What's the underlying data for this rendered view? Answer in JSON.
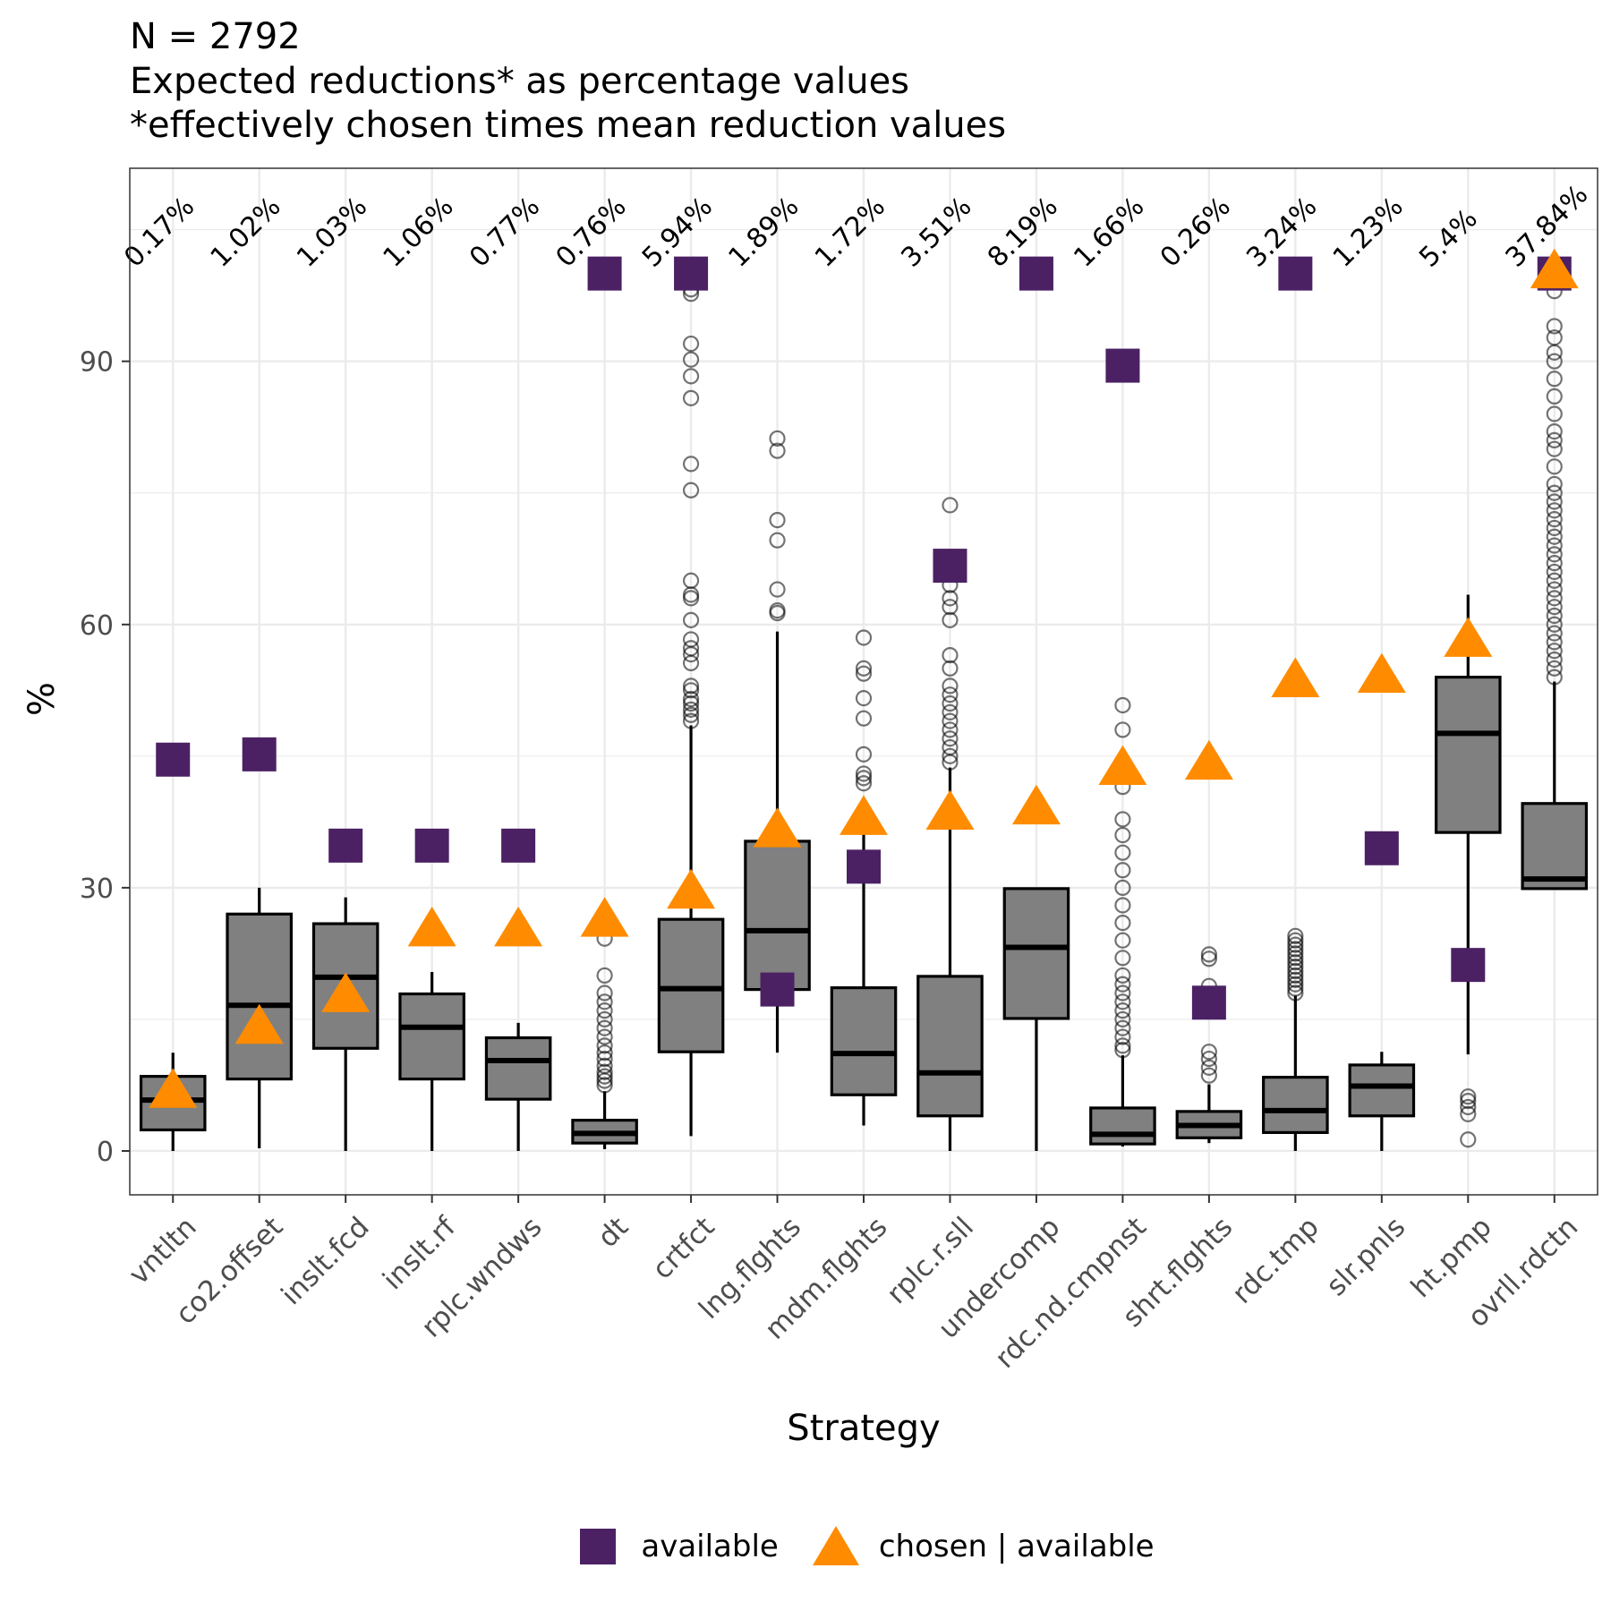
{
  "titles": {
    "line1": "N = 2792",
    "line2": "Expected reductions* as percentage values",
    "line3": "*effectively chosen times mean reduction values"
  },
  "axes": {
    "xlabel": "Strategy",
    "ylabel": "%"
  },
  "legend": {
    "available": "available",
    "chosen": "chosen | available"
  },
  "colors": {
    "available": "#4B2164",
    "chosen": "#FF8C00",
    "box_fill": "#808080",
    "grid": "#EBEBEB"
  },
  "chart_data": {
    "type": "box",
    "title": "N = 2792 / Expected reductions* as percentage values / *effectively chosen times mean reduction values",
    "xlabel": "Strategy",
    "ylabel": "%",
    "ylim": [
      -5,
      112
    ],
    "yticks": [
      0,
      30,
      60,
      90
    ],
    "categories": [
      "vntltn",
      "co2.offset",
      "inslt.fcd",
      "inslt.rf",
      "rplc.wndws",
      "dt",
      "crtfct",
      "lng.flghts",
      "mdm.flghts",
      "rplc.r.sll",
      "undercomp",
      "rdc.nd.cmpnst",
      "shrt.flghts",
      "rdc.tmp",
      "slr.pnls",
      "ht.pmp",
      "ovrll.rdctn"
    ],
    "expected_labels": [
      "0.17%",
      "1.02%",
      "1.03%",
      "1.06%",
      "0.77%",
      "0.76%",
      "5.94%",
      "1.89%",
      "1.72%",
      "3.51%",
      "8.19%",
      "1.66%",
      "0.26%",
      "3.24%",
      "1.23%",
      "5.4%",
      "37.84%"
    ],
    "boxes": [
      {
        "wlo": 0,
        "q1": 2.4,
        "med": 5.8,
        "q3": 8.5,
        "whi": 11.2,
        "out": []
      },
      {
        "wlo": 0.3,
        "q1": 8.2,
        "med": 16.6,
        "q3": 27,
        "whi": 30,
        "out": []
      },
      {
        "wlo": 0,
        "q1": 11.7,
        "med": 19.8,
        "q3": 25.9,
        "whi": 28.9,
        "out": []
      },
      {
        "wlo": 0,
        "q1": 8.2,
        "med": 14.1,
        "q3": 17.9,
        "whi": 20.4,
        "out": []
      },
      {
        "wlo": 0,
        "q1": 5.9,
        "med": 10.3,
        "q3": 12.9,
        "whi": 14.6,
        "out": []
      },
      {
        "wlo": 0.2,
        "q1": 0.9,
        "med": 2,
        "q3": 3.5,
        "whi": 6.8,
        "out": [
          7.5,
          8,
          8.5,
          9,
          9.7,
          10.5,
          11.2,
          12,
          13,
          14,
          15,
          16,
          17,
          18,
          20,
          24.2
        ]
      },
      {
        "wlo": 1.7,
        "q1": 11.3,
        "med": 18.5,
        "q3": 26.4,
        "whi": 48.5,
        "out": [
          49,
          49.7,
          50.3,
          51,
          51.5,
          52.5,
          53,
          55.6,
          56.6,
          57.3,
          58.3,
          60.5,
          63,
          63.4,
          65,
          75.3,
          78.3,
          85.8,
          88.3,
          90.2,
          92,
          97.7,
          98.2
        ]
      },
      {
        "wlo": 11.2,
        "q1": 18.4,
        "med": 25.1,
        "q3": 35.3,
        "whi": 59.2,
        "out": [
          61.3,
          61.6,
          64,
          69.6,
          71.9,
          79.8,
          81.2
        ]
      },
      {
        "wlo": 2.9,
        "q1": 6.4,
        "med": 11.1,
        "q3": 18.6,
        "whi": 37.6,
        "out": [
          41.9,
          42.5,
          43,
          45.2,
          49.3,
          51.6,
          54.4,
          55,
          58.5
        ]
      },
      {
        "wlo": 0,
        "q1": 4,
        "med": 8.9,
        "q3": 19.9,
        "whi": 43.7,
        "out": [
          44.3,
          45,
          46,
          47,
          48,
          49,
          50,
          51,
          52,
          53,
          55,
          56.5,
          60.5,
          62,
          63,
          64.5,
          66,
          73.6
        ]
      },
      {
        "wlo": 0,
        "q1": 15.1,
        "med": 23.2,
        "q3": 29.9,
        "whi": 29.9,
        "out": []
      },
      {
        "wlo": 0.5,
        "q1": 0.8,
        "med": 1.9,
        "q3": 4.9,
        "whi": 10.9,
        "out": [
          11.5,
          12,
          13,
          14,
          15,
          16,
          17,
          18,
          19,
          20,
          22,
          24,
          26,
          28,
          30,
          32,
          34,
          36,
          37.8,
          41.5,
          43,
          48,
          50.8
        ]
      },
      {
        "wlo": 0.9,
        "q1": 1.5,
        "med": 2.9,
        "q3": 4.5,
        "whi": 7.6,
        "out": [
          8.6,
          9.5,
          10.5,
          11.3,
          18.8,
          21.9,
          22.4
        ]
      },
      {
        "wlo": 0,
        "q1": 2.1,
        "med": 4.6,
        "q3": 8.4,
        "whi": 17.7,
        "out": [
          18,
          18.5,
          19,
          19.5,
          20,
          20.5,
          21,
          21.5,
          22,
          22.5,
          23,
          23.5,
          24,
          24.5
        ]
      },
      {
        "wlo": 0,
        "q1": 4,
        "med": 7.4,
        "q3": 9.8,
        "whi": 11.3,
        "out": []
      },
      {
        "wlo": 11,
        "q1": 36.3,
        "med": 47.6,
        "q3": 54,
        "whi": 63.4,
        "out": [
          1.3,
          4.2,
          5,
          5.7,
          6.2
        ]
      },
      {
        "wlo": 29.9,
        "q1": 29.9,
        "med": 31,
        "q3": 39.6,
        "whi": 53.5,
        "out": [
          54,
          55,
          56,
          57,
          58,
          59,
          60,
          61,
          62,
          63,
          64,
          65,
          66,
          67,
          68,
          69,
          70,
          71,
          72,
          73,
          74,
          75,
          76,
          78,
          80,
          81,
          82,
          84,
          86,
          88,
          90,
          91,
          92.7,
          94,
          98
        ]
      }
    ],
    "series": [
      {
        "name": "available",
        "marker": "square",
        "values": [
          44.6,
          45.2,
          34.8,
          34.8,
          34.8,
          100,
          100,
          18.4,
          32.4,
          66.7,
          100,
          89.5,
          16.9,
          100,
          34.5,
          21.2,
          100
        ]
      },
      {
        "name": "chosen | available",
        "marker": "triangle",
        "values": [
          7,
          14.3,
          17.9,
          25.4,
          25.4,
          26.5,
          29.7,
          36.7,
          38.1,
          38.7,
          39.3,
          43.8,
          44.4,
          53.8,
          54.3,
          58.4,
          100.4
        ]
      }
    ]
  }
}
